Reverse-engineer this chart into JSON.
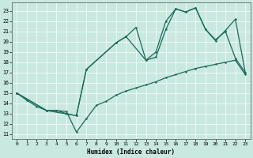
{
  "xlabel": "Humidex (Indice chaleur)",
  "xlim": [
    -0.5,
    23.5
  ],
  "ylim": [
    10.5,
    23.8
  ],
  "yticks": [
    11,
    12,
    13,
    14,
    15,
    16,
    17,
    18,
    19,
    20,
    21,
    22,
    23
  ],
  "xticks": [
    0,
    1,
    2,
    3,
    4,
    5,
    6,
    7,
    8,
    9,
    10,
    11,
    12,
    13,
    14,
    15,
    16,
    17,
    18,
    19,
    20,
    21,
    22,
    23
  ],
  "bg_color": "#c8e8e0",
  "line_color": "#1a6b5a",
  "line1_x": [
    0,
    1,
    2,
    3,
    4,
    5,
    6,
    7,
    8,
    9,
    10,
    11,
    12,
    13,
    14,
    15,
    16,
    17,
    18,
    19,
    20,
    21,
    22,
    23
  ],
  "line1_y": [
    15,
    14.3,
    13.7,
    13.3,
    13.3,
    13.2,
    11.2,
    12.5,
    13.8,
    14.2,
    14.8,
    15.2,
    15.5,
    15.8,
    16.1,
    16.5,
    16.8,
    17.1,
    17.4,
    17.6,
    17.8,
    18.0,
    18.2,
    16.8
  ],
  "line2_x": [
    0,
    3,
    4,
    5,
    6,
    7,
    10,
    11,
    12,
    13,
    14,
    15,
    16,
    17,
    18,
    19,
    20,
    21,
    22,
    23
  ],
  "line2_y": [
    15,
    13.3,
    13.3,
    13.0,
    12.8,
    17.3,
    19.9,
    20.5,
    21.4,
    18.2,
    18.5,
    21.2,
    23.2,
    22.9,
    23.3,
    21.2,
    20.1,
    21.1,
    22.2,
    17.0
  ],
  "line3_x": [
    0,
    3,
    6,
    7,
    10,
    11,
    13,
    14,
    15,
    16,
    17,
    18,
    19,
    20,
    21,
    22,
    23
  ],
  "line3_y": [
    15,
    13.3,
    12.8,
    17.3,
    19.9,
    20.5,
    18.2,
    19.0,
    22.0,
    23.2,
    22.9,
    23.3,
    21.2,
    20.2,
    21.0,
    18.4,
    17.0
  ]
}
